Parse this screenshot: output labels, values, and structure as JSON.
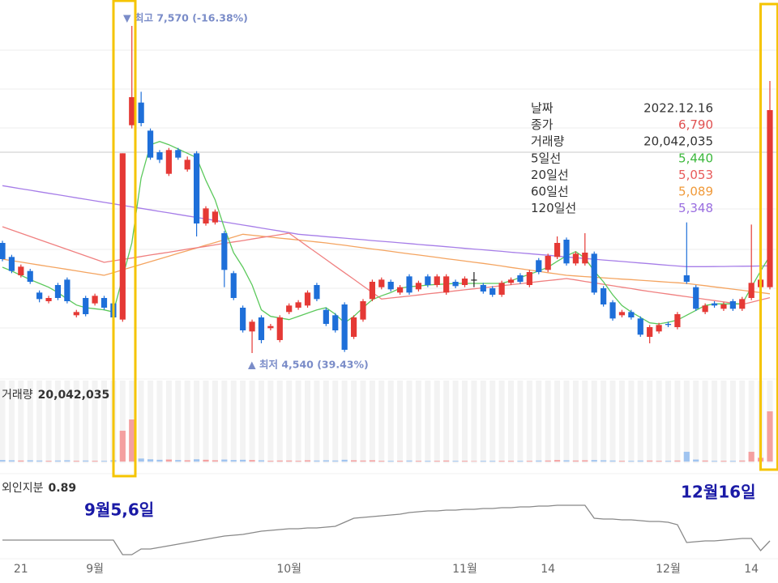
{
  "chart_data": {
    "type": "candlestick",
    "high_label": "▼ 최고 7,570 (-16.38%)",
    "low_label": "▲ 최저 4,540 (39.43%)",
    "up_color": "#e53935",
    "down_color": "#1e6fd9",
    "categories": [
      null,
      null,
      "21",
      null,
      null,
      null,
      null,
      null,
      null,
      null,
      "9월",
      null,
      null,
      null,
      null,
      null,
      null,
      null,
      null,
      null,
      null,
      null,
      null,
      null,
      null,
      null,
      null,
      null,
      null,
      null,
      null,
      "10월",
      null,
      null,
      null,
      null,
      null,
      null,
      null,
      null,
      null,
      null,
      null,
      null,
      null,
      null,
      null,
      null,
      null,
      null,
      "11월",
      null,
      null,
      null,
      null,
      null,
      null,
      null,
      null,
      "14",
      null,
      null,
      null,
      null,
      null,
      null,
      null,
      null,
      null,
      null,
      null,
      null,
      "12월",
      null,
      null,
      null,
      null,
      null,
      null,
      null,
      null,
      "14",
      null,
      null
    ],
    "open": [
      5560,
      5430,
      5260,
      5300,
      5100,
      5020,
      5170,
      5220,
      4890,
      5050,
      5000,
      5050,
      5000,
      4850,
      6650,
      6860,
      6600,
      6400,
      6200,
      6420,
      6240,
      6390,
      5740,
      5750,
      5650,
      5280,
      4960,
      4740,
      4870,
      4770,
      4660,
      4920,
      4960,
      4980,
      5170,
      4940,
      4890,
      4990,
      4690,
      4850,
      5040,
      5150,
      5200,
      5100,
      5250,
      5130,
      5250,
      5170,
      5100,
      5200,
      5170,
      5220,
      5170,
      5140,
      5080,
      5190,
      5260,
      5170,
      5400,
      5310,
      5430,
      5590,
      5370,
      5370,
      5460,
      5140,
      5010,
      4890,
      4920,
      4860,
      4690,
      4740,
      4810,
      4780,
      5260,
      5150,
      4920,
      5000,
      4950,
      5020,
      4950,
      5050,
      5150,
      5150
    ],
    "high": [
      5580,
      5450,
      5360,
      5320,
      5120,
      5070,
      5190,
      5240,
      4940,
      5070,
      5090,
      5070,
      5020,
      6390,
      7570,
      6960,
      6620,
      6420,
      6440,
      6440,
      6360,
      6410,
      5900,
      5870,
      5670,
      5300,
      4980,
      4850,
      4890,
      4810,
      4890,
      5000,
      5030,
      5120,
      5190,
      4960,
      4910,
      5010,
      4890,
      5040,
      5220,
      5240,
      5220,
      5170,
      5270,
      5210,
      5270,
      5270,
      5270,
      5220,
      5250,
      5290,
      5190,
      5160,
      5210,
      5240,
      5280,
      5310,
      5420,
      5460,
      5620,
      5610,
      5480,
      5650,
      5480,
      5160,
      5030,
      4940,
      4940,
      4880,
      4800,
      4820,
      4830,
      4920,
      5750,
      5170,
      5000,
      5020,
      5010,
      5040,
      5060,
      5730,
      5240,
      7060
    ],
    "low": [
      5390,
      5280,
      5240,
      5180,
      5010,
      5000,
      5030,
      5000,
      4870,
      4880,
      4980,
      4940,
      4850,
      4830,
      6620,
      6640,
      6330,
      6300,
      6180,
      6330,
      6220,
      5620,
      5720,
      5730,
      5150,
      5030,
      4730,
      4540,
      4630,
      4750,
      4640,
      4900,
      4940,
      4960,
      5020,
      4790,
      4730,
      4550,
      4670,
      4830,
      5020,
      5130,
      5110,
      5080,
      5080,
      5110,
      5150,
      5150,
      5080,
      5140,
      5150,
      5150,
      5090,
      5060,
      5060,
      5170,
      5180,
      5150,
      5270,
      5290,
      5410,
      5350,
      5350,
      5350,
      5080,
      4970,
      4840,
      4870,
      4850,
      4690,
      4630,
      4720,
      4780,
      4760,
      5180,
      4930,
      4900,
      4960,
      4930,
      4930,
      4930,
      5030,
      5130,
      5130
    ],
    "close": [
      5410,
      5300,
      5340,
      5200,
      5040,
      5050,
      5050,
      5020,
      4920,
      4900,
      5070,
      4960,
      4870,
      6390,
      6910,
      6670,
      6350,
      6330,
      6420,
      6350,
      6330,
      5740,
      5880,
      5850,
      5310,
      5050,
      4750,
      4830,
      4660,
      4790,
      4870,
      4980,
      5010,
      5100,
      5040,
      4810,
      4750,
      4570,
      4870,
      5020,
      5200,
      5220,
      5130,
      5150,
      5100,
      5190,
      5170,
      5250,
      5250,
      5160,
      5230,
      5220,
      5110,
      5080,
      5190,
      5220,
      5200,
      5290,
      5290,
      5440,
      5560,
      5370,
      5460,
      5470,
      5100,
      4990,
      4860,
      4920,
      4870,
      4710,
      4780,
      4800,
      4800,
      4900,
      5200,
      4950,
      4980,
      4980,
      4990,
      4950,
      5040,
      5190,
      5220,
      6790
    ],
    "series": [
      {
        "name": "120일선",
        "color": "#a67de8",
        "values": [
          6090,
          6076,
          6062,
          6048,
          6034,
          6020,
          6006,
          5992,
          5978,
          5964,
          5950,
          5936,
          5922,
          5908,
          5894,
          5880,
          5866,
          5852,
          5838,
          5824,
          5810,
          5796,
          5782,
          5768,
          5754,
          5740,
          5726,
          5712,
          5698,
          5684,
          5670,
          5655,
          5640,
          5633,
          5626,
          5618,
          5611,
          5604,
          5597,
          5590,
          5582,
          5575,
          5568,
          5561,
          5554,
          5546,
          5539,
          5532,
          5525,
          5518,
          5510,
          5503,
          5496,
          5489,
          5482,
          5474,
          5467,
          5460,
          5453,
          5446,
          5438,
          5430,
          5423,
          5416,
          5409,
          5402,
          5395,
          5388,
          5381,
          5374,
          5367,
          5360,
          5353,
          5346,
          5340,
          5340,
          5340,
          5341,
          5342,
          5343,
          5344,
          5345,
          5346,
          5348
        ]
      },
      {
        "name": "60일선",
        "color": "#f4a460",
        "values": [
          5410,
          5396,
          5383,
          5369,
          5355,
          5342,
          5328,
          5315,
          5301,
          5287,
          5274,
          5260,
          5285,
          5311,
          5336,
          5361,
          5387,
          5412,
          5437,
          5463,
          5488,
          5513,
          5539,
          5564,
          5589,
          5615,
          5640,
          5631,
          5622,
          5613,
          5604,
          5596,
          5587,
          5578,
          5569,
          5560,
          5549,
          5538,
          5526,
          5515,
          5504,
          5493,
          5482,
          5470,
          5459,
          5448,
          5437,
          5426,
          5414,
          5403,
          5392,
          5381,
          5370,
          5358,
          5346,
          5333,
          5321,
          5309,
          5297,
          5284,
          5272,
          5260,
          5254,
          5248,
          5243,
          5237,
          5231,
          5225,
          5220,
          5214,
          5208,
          5202,
          5196,
          5191,
          5185,
          5174,
          5164,
          5153,
          5142,
          5132,
          5121,
          5110,
          5100,
          5089
        ]
      },
      {
        "name": "20일선",
        "color": "#f08080",
        "values": [
          5710,
          5680,
          5650,
          5620,
          5590,
          5560,
          5530,
          5500,
          5470,
          5440,
          5410,
          5380,
          5394,
          5407,
          5420,
          5434,
          5448,
          5461,
          5474,
          5488,
          5502,
          5515,
          5528,
          5542,
          5556,
          5569,
          5582,
          5596,
          5610,
          5623,
          5636,
          5650,
          5589,
          5528,
          5467,
          5406,
          5345,
          5284,
          5223,
          5162,
          5101,
          5040,
          5050,
          5059,
          5068,
          5078,
          5088,
          5097,
          5106,
          5116,
          5126,
          5135,
          5144,
          5154,
          5164,
          5173,
          5182,
          5192,
          5202,
          5211,
          5220,
          5230,
          5217,
          5203,
          5190,
          5177,
          5163,
          5150,
          5137,
          5123,
          5110,
          5098,
          5086,
          5074,
          5062,
          5050,
          5038,
          5026,
          5014,
          5002,
          4990,
          5011,
          5032,
          5053
        ]
      },
      {
        "name": "5일선",
        "color": "#5cc95c",
        "values": [
          5335,
          5300,
          5260,
          5220,
          5185,
          5150,
          5100,
          5040,
          4985,
          4960,
          4950,
          4940,
          4920,
          5240,
          5560,
          6160,
          6470,
          6500,
          6470,
          6430,
          6390,
          6350,
          6140,
          5960,
          5700,
          5470,
          5335,
          5170,
          4940,
          4880,
          4865,
          4850,
          4880,
          4910,
          4940,
          4960,
          4900,
          4820,
          4880,
          4960,
          5035,
          5070,
          5100,
          5140,
          5155,
          5160,
          5170,
          5175,
          5180,
          5185,
          5185,
          5185,
          5185,
          5185,
          5185,
          5210,
          5240,
          5270,
          5300,
          5335,
          5390,
          5440,
          5480,
          5420,
          5300,
          5200,
          5080,
          4980,
          4920,
          4870,
          4820,
          4810,
          4825,
          4845,
          4890,
          4935,
          4980,
          4995,
          4995,
          4995,
          4995,
          5150,
          5300,
          5440
        ]
      }
    ],
    "volume": {
      "name": "거래량",
      "value_label": "20,042,035",
      "up_color": "#f4a0a0",
      "down_color": "#a0c4f0",
      "values": [
        600000,
        500000,
        400000,
        500000,
        400000,
        300000,
        400000,
        500000,
        300000,
        400000,
        300000,
        300000,
        500000,
        12300000,
        16800000,
        1200000,
        900000,
        700000,
        800000,
        600000,
        500000,
        900000,
        700000,
        500000,
        800000,
        600000,
        700000,
        600000,
        500000,
        300000,
        400000,
        400000,
        300000,
        500000,
        400000,
        500000,
        400000,
        700000,
        500000,
        400000,
        500000,
        300000,
        300000,
        300000,
        400000,
        300000,
        300000,
        300000,
        400000,
        300000,
        300000,
        200000,
        300000,
        300000,
        300000,
        300000,
        300000,
        300000,
        400000,
        400000,
        600000,
        500000,
        400000,
        500000,
        600000,
        500000,
        400000,
        300000,
        300000,
        400000,
        400000,
        300000,
        300000,
        400000,
        3900000,
        800000,
        400000,
        300000,
        300000,
        300000,
        400000,
        3900000,
        1500000,
        20042035
      ]
    },
    "foreign": {
      "name": "외인지분",
      "color": "#888888",
      "values": [
        0.9,
        0.9,
        0.9,
        0.9,
        0.9,
        0.9,
        0.9,
        0.9,
        0.9,
        0.9,
        0.9,
        0.9,
        0.9,
        0.72,
        0.72,
        0.79,
        0.79,
        0.81,
        0.83,
        0.85,
        0.87,
        0.89,
        0.91,
        0.93,
        0.95,
        0.96,
        0.97,
        0.99,
        1.01,
        1.02,
        1.03,
        1.04,
        1.04,
        1.05,
        1.05,
        1.06,
        1.07,
        1.12,
        1.17,
        1.18,
        1.19,
        1.2,
        1.21,
        1.22,
        1.24,
        1.25,
        1.26,
        1.26,
        1.27,
        1.27,
        1.28,
        1.28,
        1.29,
        1.29,
        1.3,
        1.3,
        1.31,
        1.31,
        1.32,
        1.32,
        1.33,
        1.33,
        1.33,
        1.33,
        1.17,
        1.16,
        1.16,
        1.15,
        1.15,
        1.14,
        1.13,
        1.13,
        1.12,
        1.09,
        0.87,
        0.88,
        0.89,
        0.89,
        0.9,
        0.91,
        0.92,
        0.92,
        0.77,
        0.89
      ]
    },
    "info": [
      {
        "label": "날짜",
        "value": "2022.12.16",
        "color": "#333333"
      },
      {
        "label": "종가",
        "value": "6,790",
        "color": "#e05050"
      },
      {
        "label": "거래량",
        "value": "20,042,035",
        "color": "#333333"
      },
      {
        "label": "5일선",
        "value": "5,440",
        "color": "#3cb83c"
      },
      {
        "label": "20일선",
        "value": "5,053",
        "color": "#e85a5a"
      },
      {
        "label": "60일선",
        "value": "5,089",
        "color": "#f09a3a"
      },
      {
        "label": "120일선",
        "value": "5,348",
        "color": "#9a6ee0"
      }
    ],
    "annotations": [
      "9월5,6일",
      "12월16일"
    ]
  }
}
